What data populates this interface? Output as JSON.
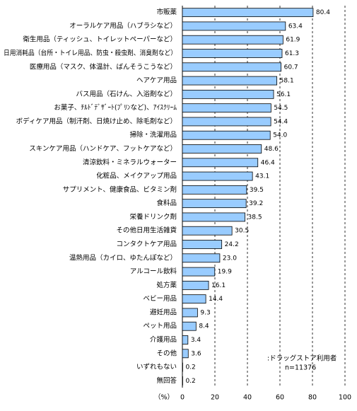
{
  "chart_data": {
    "type": "bar",
    "orientation": "horizontal",
    "categories": [
      "市販薬",
      "オーラルケア用品（ハブラシなど）",
      "衛生用品（ティッシュ、トイレットペーパーなど）",
      "日用消耗品（台所・トイレ用品、防虫・殺虫剤、消臭剤など）",
      "医療用品（マスク、体温計、ばんそうこうなど）",
      "ヘアケア用品",
      "バス用品（石けん、入浴剤など）",
      "お菓子、ﾁﾙﾄﾞﾃﾞｻﾞｰﾄ(ﾌﾟﾘﾝなど)、ｱｲｽｸﾘｰﾑ",
      "ボディケア用品（制汗剤、日焼け止め、除毛剤など）",
      "掃除・洗濯用品",
      "スキンケア用品（ハンドケア、フットケアなど）",
      "清涼飲料・ミネラルウォーター",
      "化粧品、メイクアップ用品",
      "サプリメント、健康食品、ビタミン剤",
      "食料品",
      "栄養ドリンク剤",
      "その他日用生活雑貨",
      "コンタクトケア用品",
      "温熱用品（カイロ、ゆたんぽなど）",
      "アルコール飲料",
      "処方薬",
      "ベビー用品",
      "避妊用品",
      "ペット用品",
      "介護用品",
      "その他",
      "いずれもない",
      "無回答"
    ],
    "values": [
      80.4,
      63.4,
      61.9,
      61.3,
      60.7,
      58.1,
      56.1,
      54.5,
      54.4,
      54.0,
      48.6,
      46.4,
      43.1,
      39.5,
      39.2,
      38.5,
      30.5,
      24.2,
      23.0,
      19.9,
      16.1,
      14.4,
      9.3,
      8.4,
      3.4,
      3.6,
      0.2,
      0.2
    ],
    "value_labels": [
      "80.4",
      "63.4",
      "61.9",
      "61.3",
      "60.7",
      "58.1",
      "56.1",
      "54.5",
      "54.4",
      "54.0",
      "48.6",
      "46.4",
      "43.1",
      "39.5",
      "39.2",
      "38.5",
      "30.5",
      "24.2",
      "23.0",
      "19.9",
      "16.1",
      "14.4",
      "9.3",
      "8.4",
      "3.4",
      "3.6",
      "0.2",
      "0.2"
    ],
    "color": "#99ccff",
    "xlim": [
      0,
      100
    ],
    "xticks": [
      0,
      20,
      40,
      60,
      80,
      100
    ],
    "grid": true,
    "x_axis_label": "（%）",
    "annotations": [
      ":ドラッグストア利用者",
      "n=11376"
    ]
  }
}
